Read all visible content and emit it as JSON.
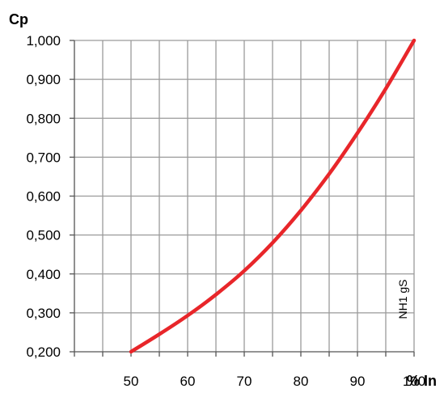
{
  "chart_data": {
    "type": "line",
    "ylabel": "Cp",
    "xlabel": "% In",
    "xlim": [
      40,
      100
    ],
    "ylim": [
      0.2,
      1.0
    ],
    "x_ticks": [
      "50",
      "60",
      "70",
      "80",
      "90",
      "100"
    ],
    "y_ticks": [
      "0,200",
      "0,300",
      "0,400",
      "0,500",
      "0,600",
      "0,700",
      "0,800",
      "0,900",
      "1,000"
    ],
    "grid": true,
    "series": [
      {
        "name": "NH1 gS",
        "color": "#e8262a",
        "x": [
          50,
          55,
          60,
          65,
          70,
          75,
          80,
          85,
          90,
          95,
          100
        ],
        "y": [
          0.2,
          0.245,
          0.293,
          0.347,
          0.408,
          0.48,
          0.563,
          0.657,
          0.762,
          0.876,
          1.0
        ]
      }
    ]
  }
}
